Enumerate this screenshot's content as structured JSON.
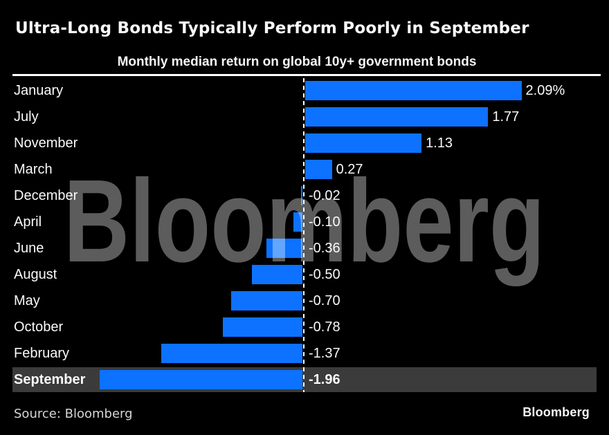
{
  "header": {
    "title": "Ultra-Long Bonds Typically Perform Poorly in September",
    "subtitle": "Monthly median return on global 10y+ government bonds"
  },
  "chart_data": {
    "type": "bar",
    "orientation": "horizontal",
    "title": "Ultra-Long Bonds Typically Perform Poorly in September",
    "subtitle": "Monthly median return on global 10y+ government bonds",
    "unit": "percent",
    "categories": [
      "January",
      "July",
      "November",
      "March",
      "December",
      "April",
      "June",
      "August",
      "May",
      "October",
      "February",
      "September"
    ],
    "values": [
      2.09,
      1.77,
      1.13,
      0.27,
      -0.02,
      -0.1,
      -0.36,
      -0.5,
      -0.7,
      -0.78,
      -1.37,
      -1.96
    ],
    "value_labels": [
      "2.09%",
      "1.77",
      "1.13",
      "0.27",
      "-0.02",
      "-0.10",
      "-0.36",
      "-0.50",
      "-0.70",
      "-0.78",
      "-1.37",
      "-1.96"
    ],
    "highlighted_category": "September",
    "xlim": [
      -1.96,
      2.09
    ],
    "zero_line": true,
    "grid": false,
    "legend": "none",
    "bar_color": "#0c72ff",
    "highlight_row_color": "#3b3b3b",
    "background_color": "#000000",
    "text_color": "#fafafa"
  },
  "watermark": {
    "text": "Bloomberg"
  },
  "footer": {
    "source": "Source: Bloomberg",
    "logo": "Bloomberg"
  }
}
